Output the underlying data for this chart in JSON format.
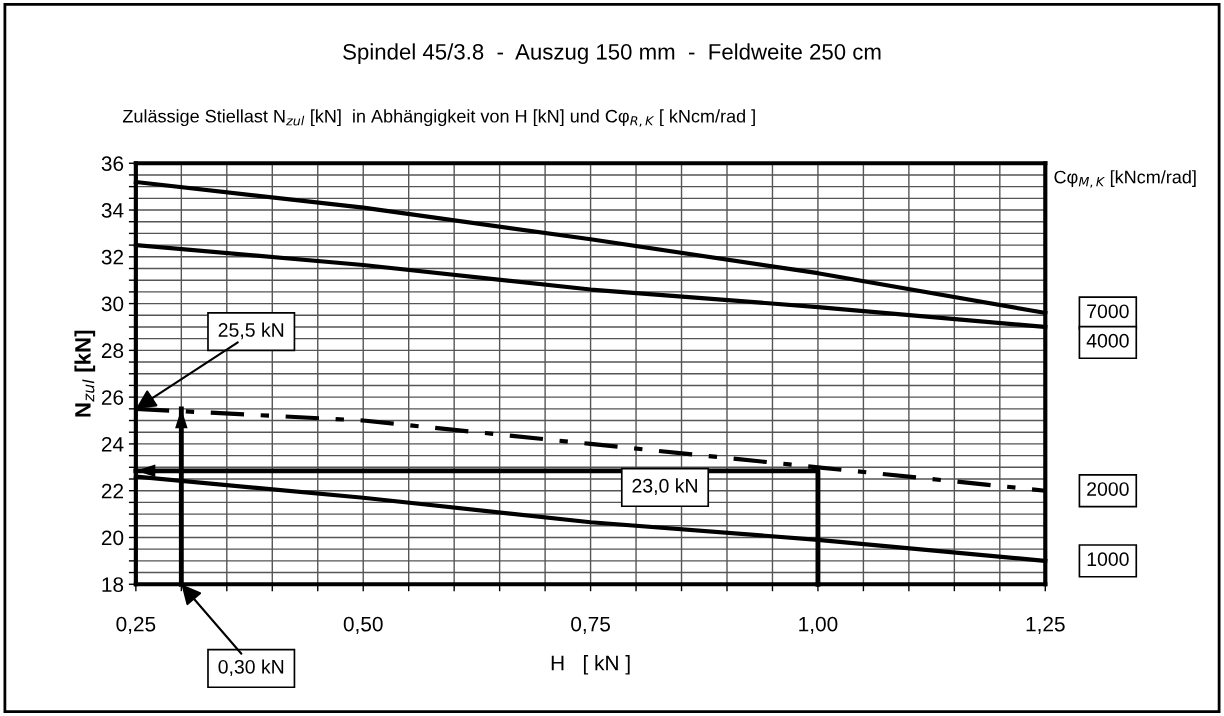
{
  "chart_data": {
    "type": "line",
    "title": "Spindel 45/3.8  -  Auszug 150 mm  -  Feldweite 250 cm",
    "subtitle": "Zulässige Stiellast N$_{zul}$ [kN]  in Abhängigkeit von H [kN] und Cφ$_{R,K}$ [ kNcm/rad ]",
    "xlabel": "H   [ kN ]",
    "ylabel": "N$_{zul}$ [kN]",
    "legend_title": "Cφ$_{M,K}$ [kNcm/rad]",
    "x": [
      0.25,
      0.5,
      0.75,
      1.0,
      1.25
    ],
    "series": [
      {
        "name": "7000",
        "color": "#000000",
        "values": [
          35.2,
          34.1,
          32.75,
          31.3,
          29.6
        ]
      },
      {
        "name": "4000",
        "color": "#000000",
        "values": [
          32.5,
          31.65,
          30.6,
          29.85,
          29.0
        ]
      },
      {
        "name": "2000",
        "color": "#000000",
        "values": [
          25.5,
          25.0,
          24.0,
          23.0,
          22.0
        ],
        "line_style": "dashed"
      },
      {
        "name": "1000",
        "color": "#000000",
        "values": [
          22.6,
          21.7,
          20.65,
          19.9,
          19.0
        ]
      },
      {
        "color": "#000000",
        "x": [
          0.3,
          0.3
        ],
        "values": [
          18,
          25.5
        ]
      },
      {
        "color": "#000000",
        "x": [
          1.0,
          1.0,
          0.25
        ],
        "values": [
          18,
          22.85,
          22.85
        ]
      }
    ],
    "annotations": [
      {
        "text": "25,5 kN",
        "x": 0.25,
        "y": 25.5
      },
      "23,0 kN",
      {
        "text": "0,30 kN",
        "x": 0.3,
        "y": 18
      }
    ],
    "xlim": [
      0.25,
      1.25
    ],
    "xticks": [
      {
        "value": 0.25,
        "label": "0,25"
      },
      {
        "value": 0.3,
        "label": null
      },
      {
        "value": 0.35,
        "label": null
      },
      {
        "value": 0.4,
        "label": null
      },
      {
        "value": 0.45,
        "label": null
      },
      {
        "value": 0.5,
        "label": "0,50"
      },
      {
        "value": 0.55,
        "label": null
      },
      {
        "value": 0.6,
        "label": null
      },
      {
        "value": 0.65,
        "label": null
      },
      {
        "value": 0.7,
        "label": null
      },
      {
        "value": 0.75,
        "label": "0,75"
      },
      {
        "value": 0.8,
        "label": null
      },
      {
        "value": 0.85,
        "label": null
      },
      {
        "value": 0.9,
        "label": null
      },
      {
        "value": 0.95,
        "label": null
      },
      {
        "value": 1.0,
        "label": "1,00"
      },
      {
        "value": 1.05,
        "label": null
      },
      {
        "value": 1.1,
        "label": null
      },
      {
        "value": 1.15,
        "label": null
      },
      {
        "value": 1.2,
        "label": null
      },
      {
        "value": 1.25,
        "label": "1,25"
      }
    ],
    "ylim": [
      18,
      36
    ],
    "yticks": [
      18,
      {
        "value": 18.5,
        "label": null
      },
      {
        "value": 19,
        "label": null
      },
      {
        "value": 19.5,
        "label": null
      },
      20,
      {
        "value": 20.5,
        "label": null
      },
      {
        "value": 21,
        "label": null
      },
      {
        "value": 21.5,
        "label": null
      },
      22,
      {
        "value": 22.5,
        "label": null
      },
      {
        "value": 23,
        "label": null
      },
      {
        "value": 23.5,
        "label": null
      },
      24,
      {
        "value": 24.5,
        "label": null
      },
      {
        "value": 25,
        "label": null
      },
      {
        "value": 25.5,
        "label": null
      },
      26,
      {
        "value": 26.5,
        "label": null
      },
      {
        "value": 27,
        "label": null
      },
      {
        "value": 27.5,
        "label": null
      },
      28,
      {
        "value": 28.5,
        "label": null
      },
      {
        "value": 29,
        "label": null
      },
      {
        "value": 29.5,
        "label": null
      },
      30,
      {
        "value": 30.5,
        "label": null
      },
      {
        "value": 31,
        "label": null
      },
      {
        "value": 31.5,
        "label": null
      },
      32,
      {
        "value": 32.5,
        "label": null
      },
      {
        "value": 33,
        "label": null
      },
      {
        "value": 33.5,
        "label": null
      },
      34,
      {
        "value": 34.5,
        "label": null
      },
      {
        "value": 35,
        "label": null
      },
      {
        "value": 35.5,
        "label": null
      },
      36
    ],
    "grid": true,
    "legend": "right"
  }
}
